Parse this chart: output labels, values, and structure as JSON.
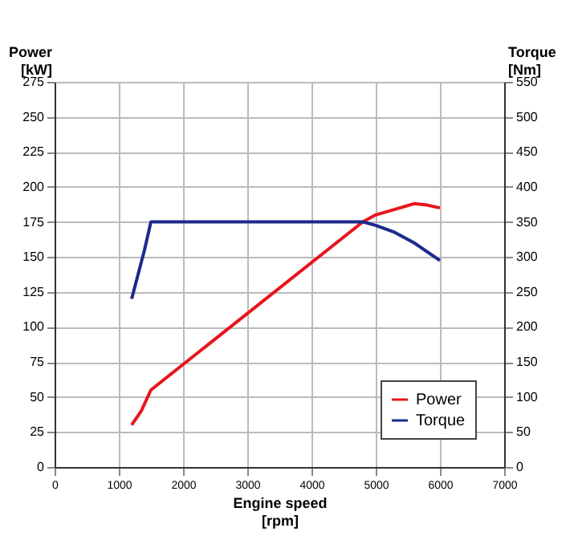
{
  "chart_data": {
    "type": "line",
    "xlabel": "Engine speed [rpm]",
    "ylabel": "Power [kW]",
    "y2label": "Torque [Nm]",
    "xlim": [
      0,
      7000
    ],
    "xticks": [
      0,
      1000,
      2000,
      3000,
      4000,
      5000,
      6000,
      7000
    ],
    "ylim": [
      0,
      275
    ],
    "yticks": [
      0,
      25,
      50,
      75,
      100,
      125,
      150,
      175,
      200,
      225,
      250,
      275
    ],
    "y2lim": [
      0,
      550
    ],
    "y2ticks": [
      0,
      50,
      100,
      150,
      200,
      250,
      300,
      350,
      400,
      450,
      500,
      550
    ],
    "grid": true,
    "legend": "bottom right",
    "marker": "none",
    "line_style": "solid",
    "series": [
      {
        "name": "Power",
        "color": "#e8141c",
        "x": [
          1200,
          1350,
          1500,
          4800,
          5000,
          5300,
          5600,
          5800,
          6000
        ],
        "values": [
          30,
          40,
          55,
          175,
          180,
          184,
          188,
          187,
          185
        ]
      },
      {
        "name": "Torque",
        "color": "#1c2a8c",
        "axis": "y2",
        "x": [
          1200,
          1400,
          1500,
          4800,
          5000,
          5300,
          5600,
          6000
        ],
        "values": [
          240,
          310,
          350,
          350,
          345,
          335,
          320,
          295
        ]
      }
    ]
  }
}
